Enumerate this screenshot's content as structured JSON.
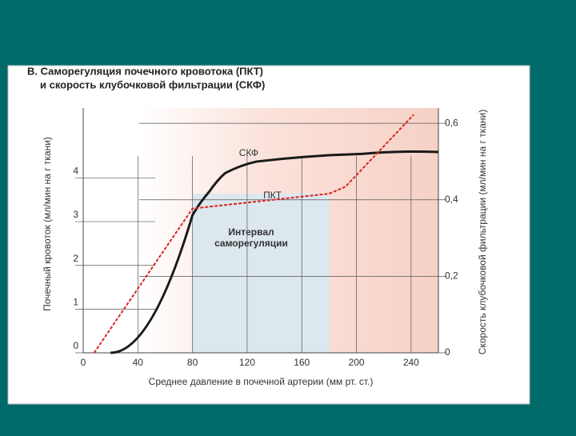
{
  "chart_data": {
    "type": "line",
    "title": [
      "В. Саморегуляция почечного кровотока (ПКТ)",
      "и скорость клубочковой фильтрации (СКФ)"
    ],
    "x_label": "Среднее давление в почечной артерии (мм рт. ст.)",
    "y_label": "Почечный кровоток (мл/мин на г ткани)",
    "y2_label": "Скорость клубочковой фильтрации (мл/мин на г ткани)",
    "xlim": [
      0,
      260
    ],
    "xticks": [
      0,
      40,
      80,
      120,
      160,
      200,
      240
    ],
    "ylim": [
      0,
      5.6
    ],
    "yticks": [
      0,
      1,
      2,
      3,
      4
    ],
    "y2lim": [
      0,
      0.64
    ],
    "y2ticks": [
      0,
      {
        "value": 0.2,
        "label": "0,2"
      },
      {
        "value": 0.4,
        "label": "0,4"
      },
      {
        "value": 0.6,
        "label": "0,6"
      }
    ],
    "grid": true,
    "series": [
      {
        "name": "СКФ",
        "color": "#1a1a1a",
        "axis": "y2",
        "x": [
          20,
          80,
          92,
          104,
          127,
          204,
          260
        ],
        "values": [
          0,
          0.36,
          0.42,
          0.47,
          0.5,
          0.52,
          0.525
        ]
      },
      {
        "name": "ПКТ",
        "color": "#d9261c",
        "x": [
          8,
          80,
          180,
          192,
          242
        ],
        "values": [
          0,
          3.3,
          3.64,
          3.8,
          5.45
        ]
      }
    ],
    "annotation": {
      "text": [
        "Интервал",
        "саморегуляции"
      ],
      "x": [
        80,
        180
      ]
    }
  }
}
